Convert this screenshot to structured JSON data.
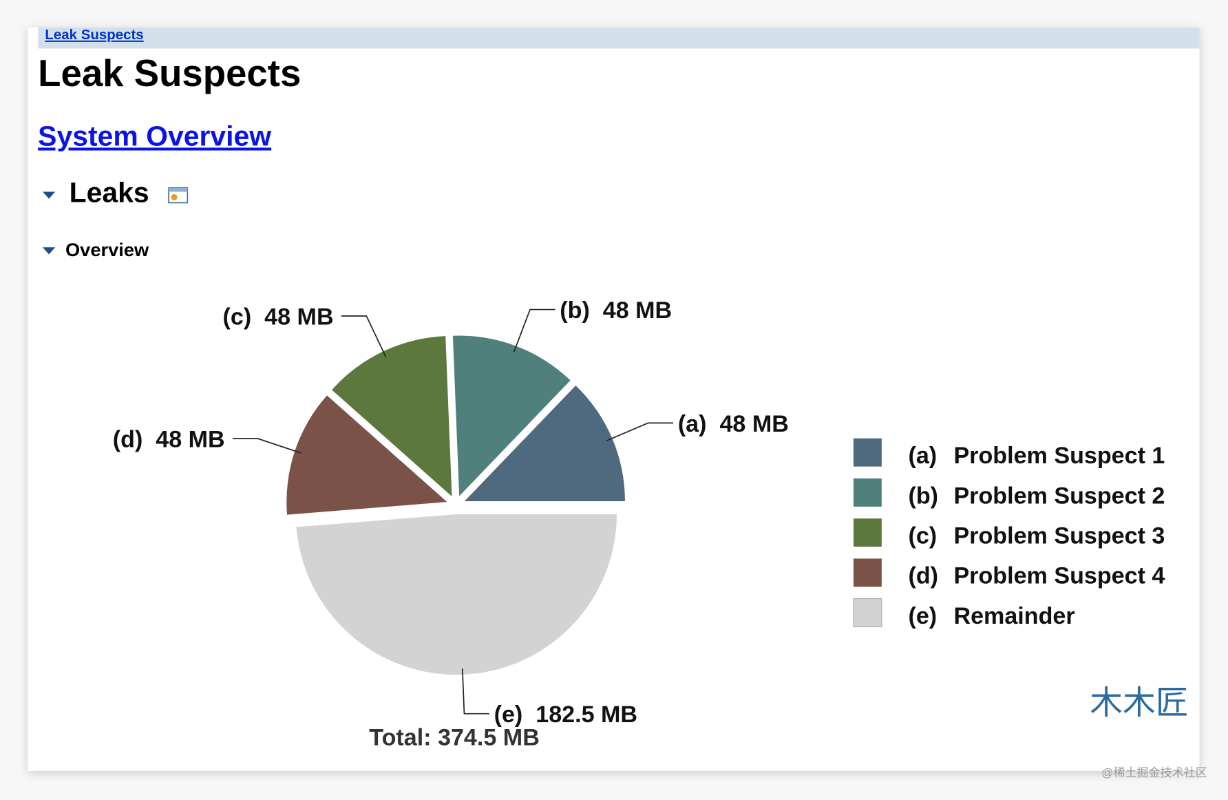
{
  "breadcrumb": "Leak Suspects",
  "title": "Leak Suspects",
  "overview_link": "System Overview",
  "section": "Leaks",
  "subsection": "Overview",
  "chart_data": {
    "type": "pie",
    "categories": [
      "(a)",
      "(b)",
      "(c)",
      "(d)",
      "(e)"
    ],
    "legend": [
      "Problem Suspect 1",
      "Problem Suspect 2",
      "Problem Suspect 3",
      "Problem Suspect 4",
      "Remainder"
    ],
    "values": [
      48,
      48,
      48,
      48,
      182.5
    ],
    "value_labels": [
      "48 MB",
      "48 MB",
      "48 MB",
      "48 MB",
      "182.5 MB"
    ],
    "colors": [
      "#4f6a7e",
      "#4f807c",
      "#5c783c",
      "#7a5248",
      "#d3d3d3"
    ],
    "total": "Total: 374.5 MB"
  },
  "watermark": "木木匠",
  "credit": "@稀土掘金技术社区"
}
